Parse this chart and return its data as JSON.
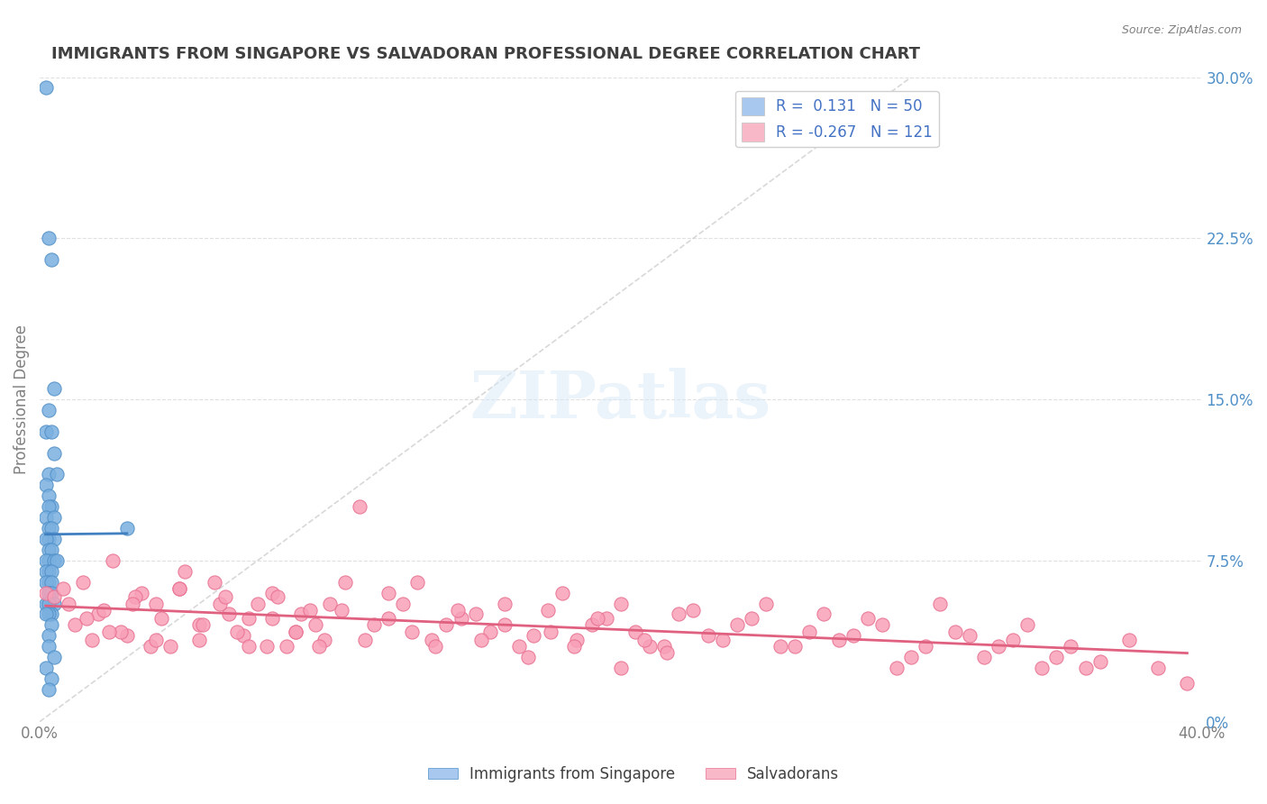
{
  "title": "IMMIGRANTS FROM SINGAPORE VS SALVADORAN PROFESSIONAL DEGREE CORRELATION CHART",
  "source": "Source: ZipAtlas.com",
  "xlabel": "",
  "ylabel": "Professional Degree",
  "xlim": [
    0.0,
    0.4
  ],
  "ylim": [
    0.0,
    0.3
  ],
  "xtick_labels": [
    "0.0%",
    "40.0%"
  ],
  "ytick_labels_right": [
    "0%",
    "7.5%",
    "15.0%",
    "22.5%",
    "30.0%"
  ],
  "ytick_positions_right": [
    0.0,
    0.075,
    0.15,
    0.225,
    0.3
  ],
  "legend_entries": [
    {
      "label": "R =  0.131   N = 50",
      "color": "#a8c8f0"
    },
    {
      "label": "R = -0.267   N = 121",
      "color": "#f8b8c8"
    }
  ],
  "series": [
    {
      "name": "Immigrants from Singapore",
      "color": "#7ab0e0",
      "edge_color": "#5090c8",
      "R": 0.131,
      "N": 50,
      "x": [
        0.002,
        0.003,
        0.004,
        0.005,
        0.003,
        0.002,
        0.004,
        0.005,
        0.003,
        0.006,
        0.002,
        0.003,
        0.004,
        0.003,
        0.002,
        0.005,
        0.003,
        0.004,
        0.003,
        0.005,
        0.002,
        0.003,
        0.004,
        0.003,
        0.002,
        0.005,
        0.006,
        0.003,
        0.002,
        0.004,
        0.003,
        0.002,
        0.004,
        0.003,
        0.003,
        0.004,
        0.002,
        0.005,
        0.003,
        0.004,
        0.03,
        0.003,
        0.002,
        0.004,
        0.003,
        0.003,
        0.005,
        0.002,
        0.004,
        0.003
      ],
      "y": [
        0.295,
        0.225,
        0.215,
        0.155,
        0.145,
        0.135,
        0.135,
        0.125,
        0.115,
        0.115,
        0.11,
        0.105,
        0.1,
        0.1,
        0.095,
        0.095,
        0.09,
        0.09,
        0.085,
        0.085,
        0.085,
        0.08,
        0.08,
        0.075,
        0.075,
        0.075,
        0.075,
        0.07,
        0.07,
        0.07,
        0.065,
        0.065,
        0.065,
        0.06,
        0.06,
        0.06,
        0.055,
        0.055,
        0.055,
        0.05,
        0.09,
        0.05,
        0.05,
        0.045,
        0.04,
        0.035,
        0.03,
        0.025,
        0.02,
        0.015
      ]
    },
    {
      "name": "Salvadorans",
      "color": "#f8a0b8",
      "edge_color": "#e87090",
      "R": -0.267,
      "N": 121,
      "x": [
        0.002,
        0.01,
        0.015,
        0.02,
        0.025,
        0.03,
        0.035,
        0.04,
        0.045,
        0.05,
        0.055,
        0.06,
        0.065,
        0.07,
        0.075,
        0.08,
        0.085,
        0.09,
        0.095,
        0.1,
        0.11,
        0.12,
        0.13,
        0.14,
        0.15,
        0.16,
        0.17,
        0.18,
        0.19,
        0.2,
        0.21,
        0.22,
        0.23,
        0.24,
        0.25,
        0.26,
        0.27,
        0.28,
        0.29,
        0.3,
        0.31,
        0.32,
        0.33,
        0.34,
        0.35,
        0.36,
        0.005,
        0.012,
        0.018,
        0.022,
        0.028,
        0.033,
        0.038,
        0.042,
        0.048,
        0.055,
        0.062,
        0.068,
        0.072,
        0.078,
        0.082,
        0.088,
        0.093,
        0.098,
        0.105,
        0.115,
        0.125,
        0.135,
        0.145,
        0.155,
        0.165,
        0.175,
        0.185,
        0.195,
        0.205,
        0.215,
        0.225,
        0.235,
        0.245,
        0.255,
        0.265,
        0.275,
        0.285,
        0.295,
        0.305,
        0.315,
        0.325,
        0.335,
        0.345,
        0.355,
        0.365,
        0.375,
        0.385,
        0.395,
        0.008,
        0.016,
        0.024,
        0.032,
        0.04,
        0.048,
        0.056,
        0.064,
        0.072,
        0.08,
        0.088,
        0.096,
        0.104,
        0.112,
        0.12,
        0.128,
        0.136,
        0.144,
        0.152,
        0.16,
        0.168,
        0.176,
        0.184,
        0.192,
        0.2,
        0.208,
        0.216
      ],
      "y": [
        0.06,
        0.055,
        0.065,
        0.05,
        0.075,
        0.04,
        0.06,
        0.055,
        0.035,
        0.07,
        0.045,
        0.065,
        0.05,
        0.04,
        0.055,
        0.06,
        0.035,
        0.05,
        0.045,
        0.055,
        0.1,
        0.06,
        0.065,
        0.045,
        0.05,
        0.055,
        0.04,
        0.06,
        0.045,
        0.055,
        0.035,
        0.05,
        0.04,
        0.045,
        0.055,
        0.035,
        0.05,
        0.04,
        0.045,
        0.03,
        0.055,
        0.04,
        0.035,
        0.045,
        0.03,
        0.025,
        0.058,
        0.045,
        0.038,
        0.052,
        0.042,
        0.058,
        0.035,
        0.048,
        0.062,
        0.038,
        0.055,
        0.042,
        0.048,
        0.035,
        0.058,
        0.042,
        0.052,
        0.038,
        0.065,
        0.045,
        0.055,
        0.038,
        0.048,
        0.042,
        0.035,
        0.052,
        0.038,
        0.048,
        0.042,
        0.035,
        0.052,
        0.038,
        0.048,
        0.035,
        0.042,
        0.038,
        0.048,
        0.025,
        0.035,
        0.042,
        0.03,
        0.038,
        0.025,
        0.035,
        0.028,
        0.038,
        0.025,
        0.018,
        0.062,
        0.048,
        0.042,
        0.055,
        0.038,
        0.062,
        0.045,
        0.058,
        0.035,
        0.048,
        0.042,
        0.035,
        0.052,
        0.038,
        0.048,
        0.042,
        0.035,
        0.052,
        0.038,
        0.045,
        0.03,
        0.042,
        0.035,
        0.048,
        0.025,
        0.038,
        0.032
      ]
    }
  ],
  "watermark": "ZIPatlas",
  "background_color": "#ffffff",
  "grid_color": "#e0e0e0",
  "title_color": "#404040",
  "title_fontsize": 13,
  "axis_label_color": "#808080",
  "tick_color": "#5090c8",
  "source_color": "#808080"
}
